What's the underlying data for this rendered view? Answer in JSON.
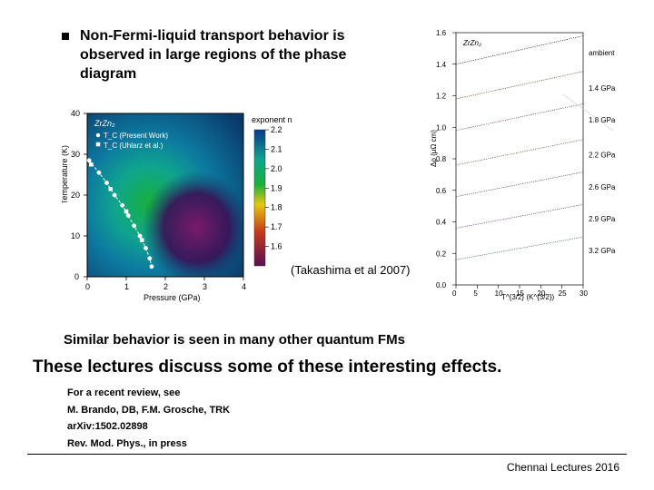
{
  "bullet": "Non-Fermi-liquid transport behavior is observed in large regions of the phase diagram",
  "citation": "(Takashima et al 2007)",
  "similar": "Similar behavior is seen in many other quantum FMs",
  "lectures": "These lectures discuss some of these interesting effects.",
  "ref1": "For a recent review, see",
  "ref2": "M. Brando, DB, F.M. Grosche, TRK",
  "ref3": "arXiv:1502.02898",
  "ref4": "Rev. Mod. Phys., in press",
  "footer": "Chennai Lectures 2016",
  "phase_diagram": {
    "type": "heatmap_scatter",
    "compound": "ZrZn₂",
    "legend1": "T_C (Present Work)",
    "legend2": "T_C (Uhlarz et al.)",
    "xlabel": "Pressure (GPa)",
    "ylabel": "Temperature (K)",
    "xlim": [
      0,
      4
    ],
    "xtick_step": 1,
    "ylim": [
      0,
      40
    ],
    "ytick_step": 10,
    "cbar_label": "exponent n",
    "cbar_lim": [
      1.5,
      2.2
    ],
    "cbar_ticks": [
      1.6,
      1.7,
      1.8,
      1.9,
      2.0,
      2.1,
      2.2
    ],
    "bg_gradient": {
      "top": "#0a3a6b",
      "upper": "#0d5aa0",
      "mid": "#0fa58e",
      "center_green": "#18b03c",
      "warm_right": "#5a2a7a",
      "lowright": "#3a0f55"
    },
    "tc_points": [
      [
        0.05,
        28.5
      ],
      [
        0.3,
        25.5
      ],
      [
        0.5,
        23.0
      ],
      [
        0.7,
        20.0
      ],
      [
        0.9,
        17.5
      ],
      [
        1.05,
        15.0
      ],
      [
        1.2,
        12.5
      ],
      [
        1.35,
        10.0
      ],
      [
        1.5,
        7.0
      ],
      [
        1.6,
        4.5
      ],
      [
        1.65,
        2.5
      ]
    ],
    "alt_points": [
      [
        0.1,
        27.5
      ],
      [
        0.6,
        21.5
      ],
      [
        1.0,
        16.0
      ],
      [
        1.4,
        9.0
      ]
    ],
    "axis_color": "#000000",
    "point_color": "#ffffff",
    "line_color": "#ffffff"
  },
  "resistivity_fig": {
    "type": "line_offset",
    "compound": "ZrZn₂",
    "xlabel": "T^{3/2} (K^{3/2})",
    "ylabel": "Δρ (μΩ cm)",
    "xlim": [
      0,
      30
    ],
    "xtick_step": 5,
    "ylim": [
      0.0,
      1.6
    ],
    "ytick_step": 0.2,
    "series": [
      {
        "label": "ambient",
        "offset": 1.4,
        "slope": 0.006,
        "color": "#000000"
      },
      {
        "label": "1.4 GPa",
        "offset": 1.18,
        "slope": 0.0058,
        "color": "#4a2a00"
      },
      {
        "label": "1.8 GPa",
        "offset": 0.98,
        "slope": 0.0056,
        "color": "#5a1a1a"
      },
      {
        "label": "2.2 GPa",
        "offset": 0.76,
        "slope": 0.0054,
        "color": "#2a4a1a"
      },
      {
        "label": "2.6 GPa",
        "offset": 0.56,
        "slope": 0.0052,
        "color": "#1a2a5a"
      },
      {
        "label": "2.9 GPa",
        "offset": 0.36,
        "slope": 0.005,
        "color": "#4a1a4a"
      },
      {
        "label": "3.2 GPa",
        "offset": 0.16,
        "slope": 0.0048,
        "color": "#1a4a4a"
      }
    ],
    "background_color": "#ffffff",
    "axis_color": "#000000",
    "label_fontsize": 8
  }
}
